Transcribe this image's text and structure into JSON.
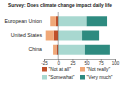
{
  "chart_data": {
    "type": "bar",
    "title": "Survey: Does climate change impact daily life",
    "orientation": "horizontal",
    "stacked": true,
    "grid": false,
    "legend": "bottom",
    "categories": [
      "European Union",
      "United States",
      "China"
    ],
    "series": [
      {
        "name": "\"Not at all\"",
        "color": "#c0502a",
        "values": [
          -4,
          -8,
          -3
        ]
      },
      {
        "name": "\"Not really\"",
        "color": "#f0a878",
        "values": [
          -10,
          -14,
          -6
        ]
      },
      {
        "name": "\"Somewhat\"",
        "color": "#a8d8d0",
        "values": [
          50,
          42,
          47
        ]
      },
      {
        "name": "\"Very much\"",
        "color": "#2e8b80",
        "values": [
          36,
          30,
          44
        ]
      }
    ],
    "xlim": [
      -25,
      100
    ],
    "xticks": [
      -25,
      0,
      25,
      50,
      75,
      100
    ]
  }
}
